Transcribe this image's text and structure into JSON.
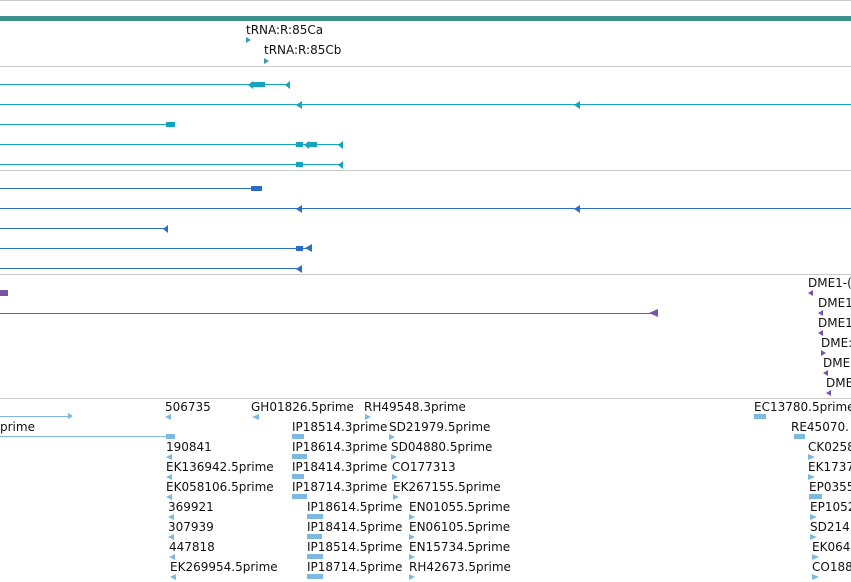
{
  "colors": {
    "ruler": "#3f8f8a",
    "separator": "#c9c9c9",
    "trna": "#3a9ab0",
    "teal_track": "#15a3bd",
    "blue_track": "#2d6cc4",
    "purple_track": "#7a52a8",
    "est_track": "#7cb8df"
  },
  "trna": {
    "labels": [
      "tRNA:R:85Ca",
      "tRNA:R:85Cb"
    ]
  },
  "purple_track": {
    "labels": [
      "DME1-(",
      "DME1",
      "DME1",
      "DME:",
      "DME",
      "DME"
    ]
  },
  "est_track": {
    "col0": [
      "prime"
    ],
    "col1": [
      "506735",
      "190841",
      "EK136942.5prime",
      "EK058106.5prime",
      "369921",
      "307939",
      "447818",
      "EK269954.5prime"
    ],
    "col2": [
      "GH01826.5prime",
      "IP18514.3prime",
      "IP18614.3prime",
      "IP18414.3prime",
      "IP18714.3prime",
      "IP18614.5prime",
      "IP18414.5prime",
      "IP18514.5prime",
      "IP18714.5prime"
    ],
    "col3": [
      "RH49548.3prime",
      "SD21979.5prime",
      "SD04880.5prime",
      "CO177313",
      "EK267155.5prime",
      "EN01055.5prime",
      "EN06105.5prime",
      "EN15734.5prime",
      "RH42673.5prime"
    ],
    "col4": [
      "EC13780.5prime",
      "RE45070.",
      "CK0258",
      "EK1737",
      "EP0355",
      "EP1052",
      "SD214",
      "EK064",
      "CO188"
    ]
  }
}
